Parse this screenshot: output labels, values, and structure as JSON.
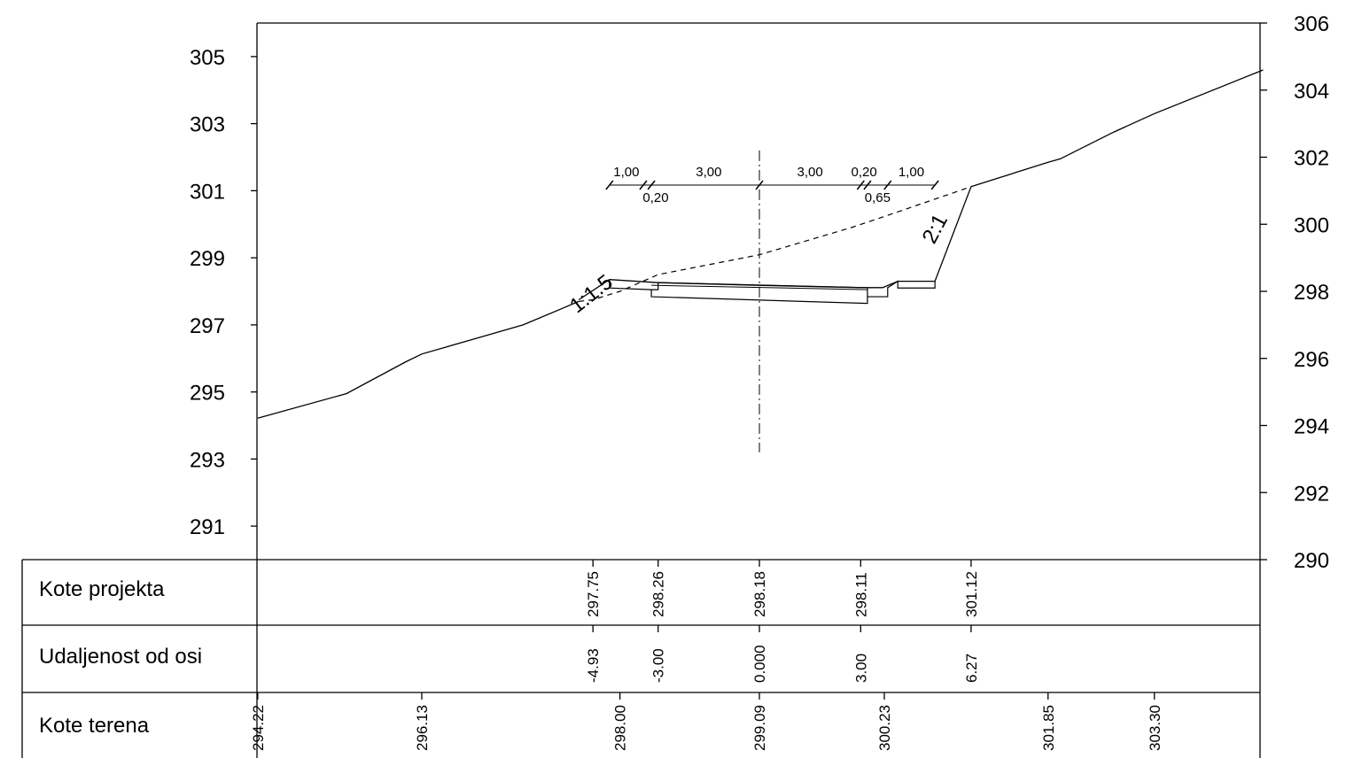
{
  "chart_data": {
    "type": "cross-section",
    "left_axis": {
      "min": 290,
      "max": 306,
      "tick_labels": [
        "305",
        "303",
        "301",
        "299",
        "297",
        "295",
        "293",
        "291"
      ]
    },
    "right_axis": {
      "min": 290,
      "max": 306,
      "tick_labels": [
        "306",
        "304",
        "302",
        "300",
        "298",
        "296",
        "294",
        "292",
        "290"
      ]
    },
    "terrain": [
      [
        -14.86,
        294.22
      ],
      [
        -12.23,
        294.95
      ],
      [
        -10.47,
        295.9
      ],
      [
        -10.0,
        296.13
      ],
      [
        -7.0,
        297.0
      ],
      [
        -5.35,
        297.7
      ],
      [
        -4.93,
        297.75
      ],
      [
        -4.13,
        298.0
      ],
      [
        -3.0,
        298.5
      ],
      [
        0.0,
        299.09
      ],
      [
        2.72,
        299.9
      ],
      [
        3.7,
        300.23
      ],
      [
        6.27,
        301.12
      ],
      [
        8.91,
        301.95
      ],
      [
        8.55,
        301.85
      ],
      [
        10.5,
        302.75
      ],
      [
        11.7,
        303.3
      ],
      [
        14.92,
        304.6
      ]
    ],
    "design_line": [
      [
        -5.35,
        297.75
      ],
      [
        -4.44,
        298.35
      ],
      [
        -3.0,
        298.26
      ],
      [
        0.0,
        298.18
      ],
      [
        3.0,
        298.11
      ],
      [
        3.65,
        298.11
      ],
      [
        4.1,
        298.3
      ],
      [
        5.2,
        298.3
      ],
      [
        6.27,
        301.12
      ]
    ],
    "centerline": {
      "x": 0.0,
      "y_from": 293.2,
      "y_to": 302.2
    },
    "slope_labels": [
      "1:1.5",
      "2:1"
    ],
    "dimension_labels_top": [
      "1,00",
      "3,00",
      "3,00",
      "0,20",
      "1,00"
    ],
    "dimension_labels_bottom": [
      "0,20",
      "0,65"
    ],
    "table": {
      "rows": [
        "Kote projekta",
        "Udaljenost od osi",
        "Kote terena"
      ],
      "kote_projekta": [
        {
          "x": -4.93,
          "label": "297.75"
        },
        {
          "x": -3.0,
          "label": "298.26"
        },
        {
          "x": 0.0,
          "label": "298.18"
        },
        {
          "x": 3.0,
          "label": "298.11"
        },
        {
          "x": 6.27,
          "label": "301.12"
        }
      ],
      "udaljenost": [
        {
          "x": -4.93,
          "label": "-4.93"
        },
        {
          "x": -3.0,
          "label": "-3.00"
        },
        {
          "x": 0.0,
          "label": "0.000"
        },
        {
          "x": 3.0,
          "label": "3.00"
        },
        {
          "x": 6.27,
          "label": "6.27"
        }
      ],
      "kote_terena": [
        {
          "x": -14.86,
          "label": "294.22"
        },
        {
          "x": -10.0,
          "label": "296.13"
        },
        {
          "x": -4.13,
          "label": "298.00"
        },
        {
          "x": 0.0,
          "label": "299.09"
        },
        {
          "x": 3.7,
          "label": "300.23"
        },
        {
          "x": 8.55,
          "label": "301.85"
        },
        {
          "x": 11.7,
          "label": "303.30"
        }
      ]
    }
  }
}
